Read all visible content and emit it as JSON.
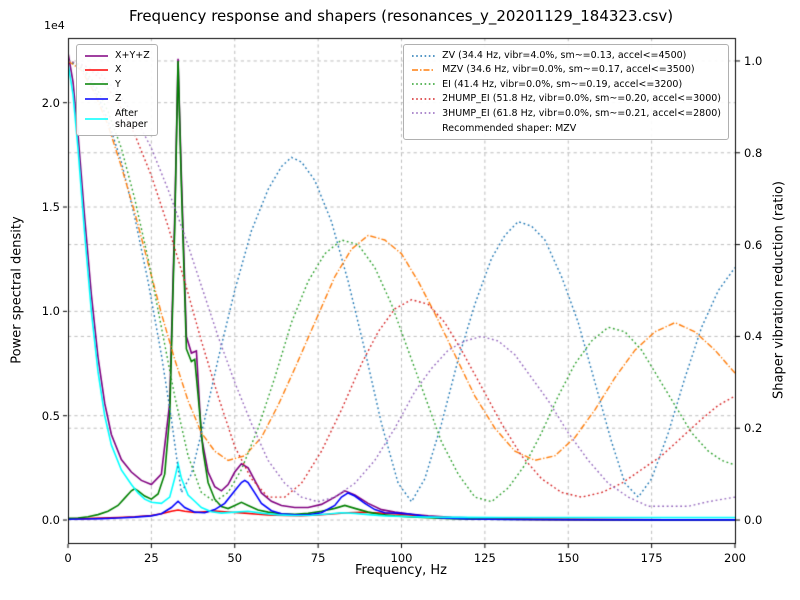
{
  "chart_data": {
    "type": "line",
    "title": "Frequency response and shapers (resonances_y_20201129_184323.csv)",
    "xlabel": "Frequency, Hz",
    "ylabel_left": "Power spectral density",
    "ylabel_right": "Shaper vibration reduction (ratio)",
    "offset_text": "1e4",
    "grid": true,
    "xlim": [
      0,
      200
    ],
    "ylim_left": [
      -1100,
      23100
    ],
    "ylim_right": [
      -0.05,
      1.05
    ],
    "x_ticks": {
      "labels": [
        "0",
        "25",
        "50",
        "75",
        "100",
        "125",
        "150",
        "175",
        "200"
      ],
      "values": [
        0,
        25,
        50,
        75,
        100,
        125,
        150,
        175,
        200
      ]
    },
    "y_ticks_left": {
      "labels": [
        "0.0",
        "0.5",
        "1.0",
        "1.5",
        "2.0"
      ],
      "values": [
        0,
        5000,
        10000,
        15000,
        20000
      ]
    },
    "y_ticks_right": {
      "labels": [
        "0.0",
        "0.2",
        "0.4",
        "0.6",
        "0.8",
        "1.0"
      ],
      "values": [
        0,
        0.2,
        0.4,
        0.6,
        0.8,
        1.0
      ]
    },
    "recommended_shaper": "MZV",
    "legend_note": "Recommended shaper: MZV",
    "psd_series": [
      {
        "name": "X+Y+Z",
        "legend": "X+Y+Z",
        "color": "#800080",
        "style": "solid",
        "axis": "left",
        "x": [
          0,
          1.5,
          3,
          5,
          7,
          9,
          11,
          13,
          16,
          19,
          22,
          25,
          28,
          30.5,
          32,
          33,
          34,
          35.5,
          37,
          38.5,
          40,
          42,
          44,
          46,
          48,
          50,
          52,
          54,
          56,
          58,
          61,
          64,
          68,
          72,
          76,
          80,
          83,
          86,
          90,
          94,
          98,
          103,
          108,
          115,
          125,
          140,
          160,
          180,
          200
        ],
        "y": [
          22400,
          21000,
          18500,
          14500,
          10800,
          7800,
          5600,
          4100,
          2900,
          2300,
          1900,
          1700,
          2200,
          5600,
          14500,
          22100,
          16500,
          8800,
          8000,
          8100,
          4000,
          2300,
          1600,
          1400,
          1700,
          2300,
          2700,
          2500,
          1900,
          1300,
          900,
          700,
          600,
          600,
          750,
          1100,
          1400,
          1200,
          800,
          500,
          380,
          280,
          200,
          130,
          80,
          40,
          20,
          15,
          15
        ]
      },
      {
        "name": "X",
        "legend": "X",
        "color": "#ff0000",
        "style": "solid",
        "axis": "left",
        "x": [
          0,
          5,
          10,
          15,
          20,
          25,
          28,
          31,
          33,
          35,
          38,
          41,
          44,
          47,
          50,
          53,
          56,
          60,
          65,
          70,
          75,
          80,
          84,
          88,
          92,
          96,
          100,
          104,
          108,
          115,
          125,
          140,
          160,
          180,
          200
        ],
        "y": [
          60,
          70,
          90,
          120,
          160,
          220,
          300,
          420,
          480,
          420,
          360,
          400,
          430,
          400,
          360,
          330,
          290,
          250,
          220,
          210,
          240,
          300,
          350,
          370,
          350,
          310,
          280,
          220,
          150,
          90,
          50,
          30,
          20,
          15,
          15
        ]
      },
      {
        "name": "Y",
        "legend": "Y",
        "color": "#008000",
        "style": "solid",
        "axis": "left",
        "x": [
          0,
          3,
          6,
          9,
          12,
          15,
          17,
          19,
          20,
          21,
          23,
          25,
          27,
          29,
          30.5,
          32,
          33,
          34,
          35.5,
          37,
          38,
          39,
          40.5,
          42,
          44,
          46,
          48,
          50,
          52,
          54,
          57,
          60,
          64,
          68,
          72,
          76,
          80,
          83,
          86,
          90,
          94,
          98,
          103,
          108,
          115,
          125,
          140,
          160,
          180,
          200
        ],
        "y": [
          80,
          100,
          160,
          260,
          420,
          700,
          1050,
          1400,
          1500,
          1400,
          1150,
          1000,
          1250,
          2200,
          5000,
          14000,
          22000,
          16000,
          8200,
          7600,
          7700,
          6000,
          3300,
          1800,
          1000,
          650,
          550,
          700,
          850,
          700,
          480,
          380,
          300,
          280,
          320,
          420,
          560,
          700,
          560,
          380,
          260,
          200,
          150,
          110,
          70,
          40,
          25,
          15,
          10,
          10
        ]
      },
      {
        "name": "Z",
        "legend": "Z",
        "color": "#0000ff",
        "style": "solid",
        "axis": "left",
        "x": [
          0,
          5,
          10,
          15,
          20,
          25,
          28,
          31,
          33,
          35,
          38,
          41,
          44,
          47,
          50,
          52,
          53,
          54,
          56,
          58,
          61,
          64,
          68,
          72,
          76,
          80,
          82,
          84,
          86,
          89,
          92,
          95,
          99,
          103,
          107,
          112,
          120,
          132,
          150,
          175,
          200
        ],
        "y": [
          40,
          50,
          70,
          100,
          140,
          200,
          300,
          600,
          900,
          600,
          380,
          350,
          500,
          800,
          1400,
          1800,
          1900,
          1800,
          1300,
          800,
          450,
          300,
          250,
          250,
          350,
          700,
          1100,
          1300,
          1150,
          800,
          500,
          350,
          330,
          280,
          180,
          100,
          50,
          25,
          15,
          10,
          10
        ]
      },
      {
        "name": "After shaper",
        "legend": "After\nshaper",
        "color": "#00ffff",
        "style": "solid",
        "axis": "left",
        "x": [
          0,
          1.5,
          3,
          5,
          7,
          9,
          11,
          13,
          16,
          19,
          21,
          23,
          25,
          28,
          30.5,
          32,
          33,
          34,
          36,
          38,
          40,
          43,
          46,
          50,
          54,
          58,
          63,
          68,
          73,
          78,
          82,
          86,
          90,
          95,
          100,
          108,
          118,
          130,
          150,
          175,
          200
        ],
        "y": [
          21900,
          20400,
          17800,
          13700,
          10000,
          7100,
          5000,
          3600,
          2400,
          1700,
          1300,
          1000,
          850,
          800,
          1100,
          2000,
          2700,
          2000,
          1200,
          900,
          600,
          400,
          330,
          380,
          420,
          330,
          250,
          220,
          230,
          290,
          350,
          320,
          260,
          200,
          170,
          140,
          130,
          120,
          120,
          120,
          120
        ]
      }
    ],
    "shaper_series": [
      {
        "name": "ZV",
        "freq_hz": 34.4,
        "vibr_pct": 4.0,
        "smoothing": 0.13,
        "max_accel": 4500,
        "legend": "ZV (34.4 Hz, vibr=4.0%, sm~=0.13, accel<=4500)",
        "color": "#1f77b4",
        "style": "dotted",
        "axis": "right",
        "x": [
          0,
          4,
          8,
          12,
          16,
          20,
          24,
          28,
          31,
          34,
          37,
          41,
          45,
          50,
          55,
          60,
          64,
          67,
          70,
          74,
          79,
          84,
          89,
          94,
          99,
          103,
          107,
          112,
          117,
          122,
          127,
          131,
          135,
          139,
          143,
          148,
          153,
          158,
          163,
          167,
          171,
          175,
          180,
          185,
          190,
          195,
          200
        ],
        "y": [
          1.0,
          0.985,
          0.94,
          0.87,
          0.78,
          0.66,
          0.52,
          0.36,
          0.22,
          0.06,
          0.1,
          0.22,
          0.35,
          0.5,
          0.63,
          0.72,
          0.77,
          0.79,
          0.78,
          0.74,
          0.65,
          0.52,
          0.37,
          0.21,
          0.08,
          0.04,
          0.09,
          0.21,
          0.35,
          0.47,
          0.57,
          0.62,
          0.65,
          0.64,
          0.61,
          0.53,
          0.43,
          0.3,
          0.17,
          0.08,
          0.05,
          0.09,
          0.19,
          0.31,
          0.42,
          0.5,
          0.55
        ]
      },
      {
        "name": "MZV",
        "freq_hz": 34.6,
        "vibr_pct": 0.0,
        "smoothing": 0.17,
        "max_accel": 3500,
        "legend": "MZV (34.6 Hz, vibr=0.0%, sm~=0.17, accel<=3500)",
        "color": "#ff7f0e",
        "style": "dashdot",
        "axis": "right",
        "x": [
          0,
          4,
          8,
          12,
          16,
          20,
          24,
          28,
          32,
          36,
          40,
          44,
          48,
          53,
          58,
          63,
          68,
          74,
          80,
          85,
          90,
          95,
          100,
          105,
          110,
          116,
          122,
          128,
          134,
          140,
          146,
          152,
          158,
          164,
          170,
          176,
          182,
          188,
          194,
          200
        ],
        "y": [
          1.0,
          0.98,
          0.93,
          0.86,
          0.77,
          0.67,
          0.56,
          0.45,
          0.35,
          0.26,
          0.19,
          0.15,
          0.13,
          0.14,
          0.18,
          0.25,
          0.33,
          0.43,
          0.53,
          0.59,
          0.62,
          0.61,
          0.58,
          0.52,
          0.45,
          0.36,
          0.27,
          0.2,
          0.15,
          0.13,
          0.14,
          0.18,
          0.24,
          0.31,
          0.37,
          0.41,
          0.43,
          0.41,
          0.37,
          0.32
        ]
      },
      {
        "name": "EI",
        "freq_hz": 41.4,
        "vibr_pct": 0.0,
        "smoothing": 0.19,
        "max_accel": 3200,
        "legend": "EI (41.4 Hz, vibr=0.0%, sm~=0.19, accel<=3200)",
        "color": "#2ca02c",
        "style": "dotted",
        "axis": "right",
        "x": [
          0,
          4,
          8,
          12,
          16,
          20,
          24,
          28,
          32,
          36,
          40,
          44,
          48,
          52,
          57,
          62,
          67,
          72,
          77,
          82,
          87,
          92,
          97,
          102,
          107,
          112,
          117,
          122,
          127,
          132,
          137,
          142,
          147,
          152,
          157,
          162,
          167,
          172,
          177,
          182,
          187,
          192,
          196,
          200
        ],
        "y": [
          1.0,
          0.99,
          0.95,
          0.89,
          0.81,
          0.7,
          0.57,
          0.42,
          0.27,
          0.14,
          0.06,
          0.04,
          0.06,
          0.11,
          0.2,
          0.31,
          0.43,
          0.52,
          0.58,
          0.61,
          0.6,
          0.55,
          0.47,
          0.37,
          0.27,
          0.17,
          0.1,
          0.05,
          0.04,
          0.07,
          0.12,
          0.19,
          0.27,
          0.34,
          0.39,
          0.42,
          0.41,
          0.37,
          0.31,
          0.25,
          0.19,
          0.15,
          0.13,
          0.12
        ]
      },
      {
        "name": "2HUMP_EI",
        "freq_hz": 51.8,
        "vibr_pct": 0.0,
        "smoothing": 0.2,
        "max_accel": 3000,
        "legend": "2HUMP_EI (51.8 Hz, vibr=0.0%, sm~=0.20, accel<=3000)",
        "color": "#d62728",
        "style": "dotted",
        "axis": "right",
        "x": [
          0,
          5,
          10,
          15,
          20,
          25,
          30,
          35,
          40,
          45,
          50,
          55,
          60,
          65,
          70,
          76,
          82,
          88,
          93,
          98,
          103,
          108,
          113,
          118,
          124,
          130,
          136,
          142,
          148,
          154,
          160,
          166,
          172,
          178,
          184,
          190,
          195,
          200
        ],
        "y": [
          1.0,
          0.99,
          0.96,
          0.91,
          0.84,
          0.75,
          0.64,
          0.52,
          0.39,
          0.27,
          0.16,
          0.09,
          0.05,
          0.05,
          0.08,
          0.15,
          0.24,
          0.34,
          0.41,
          0.46,
          0.48,
          0.47,
          0.43,
          0.37,
          0.29,
          0.21,
          0.14,
          0.09,
          0.06,
          0.05,
          0.06,
          0.08,
          0.11,
          0.14,
          0.18,
          0.22,
          0.25,
          0.27
        ]
      },
      {
        "name": "3HUMP_EI",
        "freq_hz": 61.8,
        "vibr_pct": 0.0,
        "smoothing": 0.21,
        "max_accel": 2800,
        "legend": "3HUMP_EI (61.8 Hz, vibr=0.0%, sm~=0.21, accel<=2800)",
        "color": "#9467bd",
        "style": "dotted",
        "axis": "right",
        "x": [
          0,
          5,
          10,
          15,
          20,
          25,
          30,
          35,
          40,
          45,
          50,
          55,
          60,
          65,
          70,
          75,
          80,
          86,
          92,
          98,
          104,
          109,
          114,
          119,
          124,
          129,
          134,
          139,
          144,
          150,
          156,
          162,
          168,
          174,
          180,
          186,
          192,
          200
        ],
        "y": [
          1.0,
          0.99,
          0.97,
          0.93,
          0.88,
          0.81,
          0.72,
          0.62,
          0.51,
          0.4,
          0.3,
          0.21,
          0.13,
          0.08,
          0.05,
          0.04,
          0.05,
          0.08,
          0.13,
          0.2,
          0.28,
          0.33,
          0.37,
          0.39,
          0.4,
          0.39,
          0.36,
          0.31,
          0.26,
          0.19,
          0.13,
          0.08,
          0.05,
          0.03,
          0.03,
          0.03,
          0.04,
          0.05
        ]
      }
    ]
  }
}
